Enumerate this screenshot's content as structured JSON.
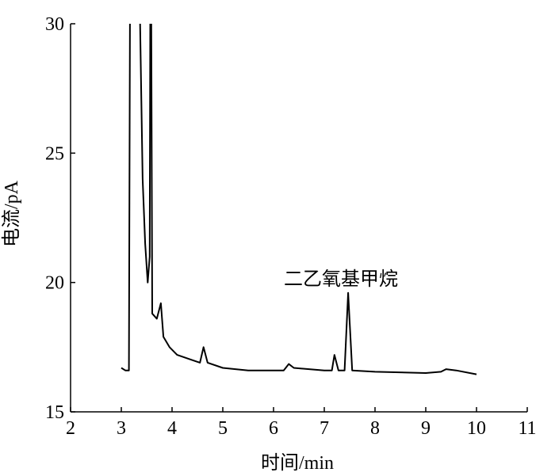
{
  "chart_data": {
    "type": "line",
    "x_label": "时间/min",
    "y_label": "电流/pA",
    "annotation": "二乙氧基甲烷",
    "x": [
      3.0,
      3.08,
      3.15,
      3.17,
      3.18,
      3.37,
      3.42,
      3.47,
      3.52,
      3.56,
      3.57,
      3.58,
      3.59,
      3.61,
      3.7,
      3.78,
      3.83,
      3.95,
      4.1,
      4.4,
      4.55,
      4.62,
      4.7,
      5.0,
      5.5,
      6.0,
      6.2,
      6.3,
      6.4,
      7.0,
      7.15,
      7.2,
      7.28,
      7.4,
      7.47,
      7.55,
      8.0,
      9.0,
      9.3,
      9.4,
      9.6,
      10.0
    ],
    "series": [
      {
        "color": "#000000",
        "values": [
          16.7,
          16.6,
          16.6,
          30,
          null,
          30,
          24,
          21.5,
          20.0,
          21,
          30,
          null,
          30,
          18.8,
          18.6,
          19.2,
          17.9,
          17.5,
          17.2,
          17.0,
          16.9,
          17.5,
          16.9,
          16.7,
          16.6,
          16.6,
          16.6,
          16.85,
          16.7,
          16.6,
          16.6,
          17.2,
          16.6,
          16.6,
          19.6,
          16.6,
          16.55,
          16.5,
          16.55,
          16.65,
          16.6,
          16.45
        ]
      }
    ],
    "xlim": [
      2,
      11
    ],
    "xticks": [
      2,
      3,
      4,
      5,
      6,
      7,
      8,
      9,
      10,
      11
    ],
    "ylim": [
      15,
      30
    ],
    "yticks": [
      15,
      20,
      25,
      30
    ]
  }
}
